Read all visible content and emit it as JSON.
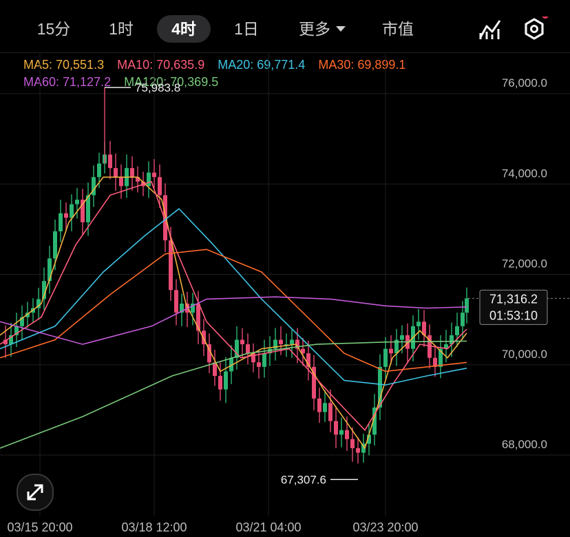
{
  "tabs": [
    {
      "label": "15分",
      "active": false
    },
    {
      "label": "1时",
      "active": false
    },
    {
      "label": "4时",
      "active": true
    },
    {
      "label": "1日",
      "active": false
    },
    {
      "label": "更多",
      "active": false
    },
    {
      "label": "市值",
      "active": false
    }
  ],
  "header_icons": [
    "indicator-chart-icon",
    "settings-hex-icon"
  ],
  "notification_dot_color": "#f03a5f",
  "ma_legend": [
    {
      "label": "MA5: 70,551.3",
      "color": "#f2b140"
    },
    {
      "label": "MA10: 70,635.9",
      "color": "#ff5c7c"
    },
    {
      "label": "MA20: 69,771.4",
      "color": "#3fc3e3"
    },
    {
      "label": "MA30: 69,899.1",
      "color": "#ff6a2a"
    },
    {
      "label": "MA60: 71,127.2",
      "color": "#c45ad8"
    },
    {
      "label": "MA120: 70,369.5",
      "color": "#78c97a"
    }
  ],
  "price_tag": {
    "price": "71,316.2",
    "countdown": "01:53:10"
  },
  "colors": {
    "up": "#2bb673",
    "down": "#e84b74",
    "grid": "#1e1e1e",
    "axis_text": "#bdbdbd"
  },
  "chart_data": {
    "type": "candlestick",
    "x_ticks": [
      "03/15 20:00",
      "03/18 12:00",
      "03/21 04:00",
      "03/23 20:00"
    ],
    "y_ticks": [
      "76,000.0",
      "74,000.0",
      "72,000.0",
      "70,000.0",
      "68,000.0"
    ],
    "ylim": [
      66800,
      76800
    ],
    "high_marker": "75,983.8",
    "low_marker": "67,307.6",
    "last_price": 71316.2
  }
}
